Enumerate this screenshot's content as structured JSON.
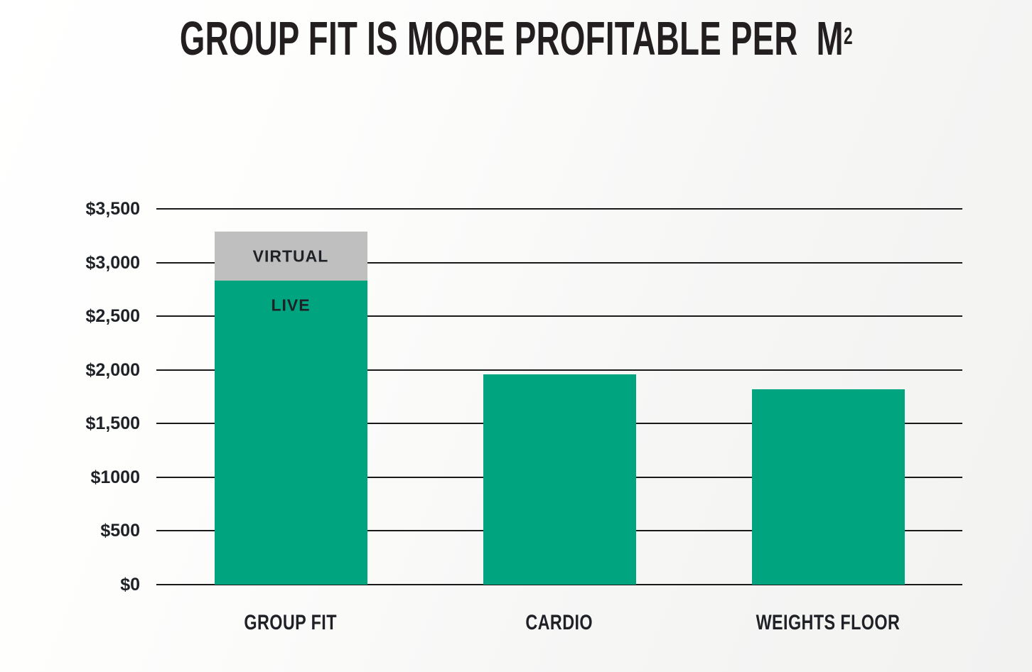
{
  "header": {
    "title_main": "GROUP FIT IS MORE PROFITABLE PER  M",
    "title_exponent": "2"
  },
  "colors": {
    "live_teal": "#00a47e",
    "virtual_gray": "#bfbfbf",
    "title_black": "#231f20",
    "label_dark": "#1e2126",
    "gridline": "#1a1a1a"
  },
  "chart_data": {
    "type": "bar",
    "stacked": true,
    "title": "GROUP FIT IS MORE PROFITABLE PER M²",
    "xlabel": "",
    "ylabel": "",
    "ylim": [
      0,
      3500
    ],
    "grid": true,
    "legend_position": "none",
    "yticks": [
      {
        "value": 0,
        "label": "$0"
      },
      {
        "value": 500,
        "label": "$500"
      },
      {
        "value": 1000,
        "label": "$1000"
      },
      {
        "value": 1500,
        "label": "$1,500"
      },
      {
        "value": 2000,
        "label": "$2,000"
      },
      {
        "value": 2500,
        "label": "$2,500"
      },
      {
        "value": 3000,
        "label": "$3,000"
      },
      {
        "value": 3500,
        "label": "$3,500"
      }
    ],
    "categories": [
      "GROUP FIT",
      "CARDIO",
      "WEIGHTS FLOOR"
    ],
    "bars": [
      {
        "category": "GROUP FIT",
        "total": 3290,
        "segments": [
          {
            "label": "LIVE",
            "value": 2830,
            "color": "#00a47e"
          },
          {
            "label": "VIRTUAL",
            "value": 460,
            "color": "#bfbfbf"
          }
        ]
      },
      {
        "category": "CARDIO",
        "total": 1960,
        "segments": [
          {
            "label": "",
            "value": 1960,
            "color": "#00a47e"
          }
        ]
      },
      {
        "category": "WEIGHTS FLOOR",
        "total": 1820,
        "segments": [
          {
            "label": "",
            "value": 1820,
            "color": "#00a47e"
          }
        ]
      }
    ]
  }
}
